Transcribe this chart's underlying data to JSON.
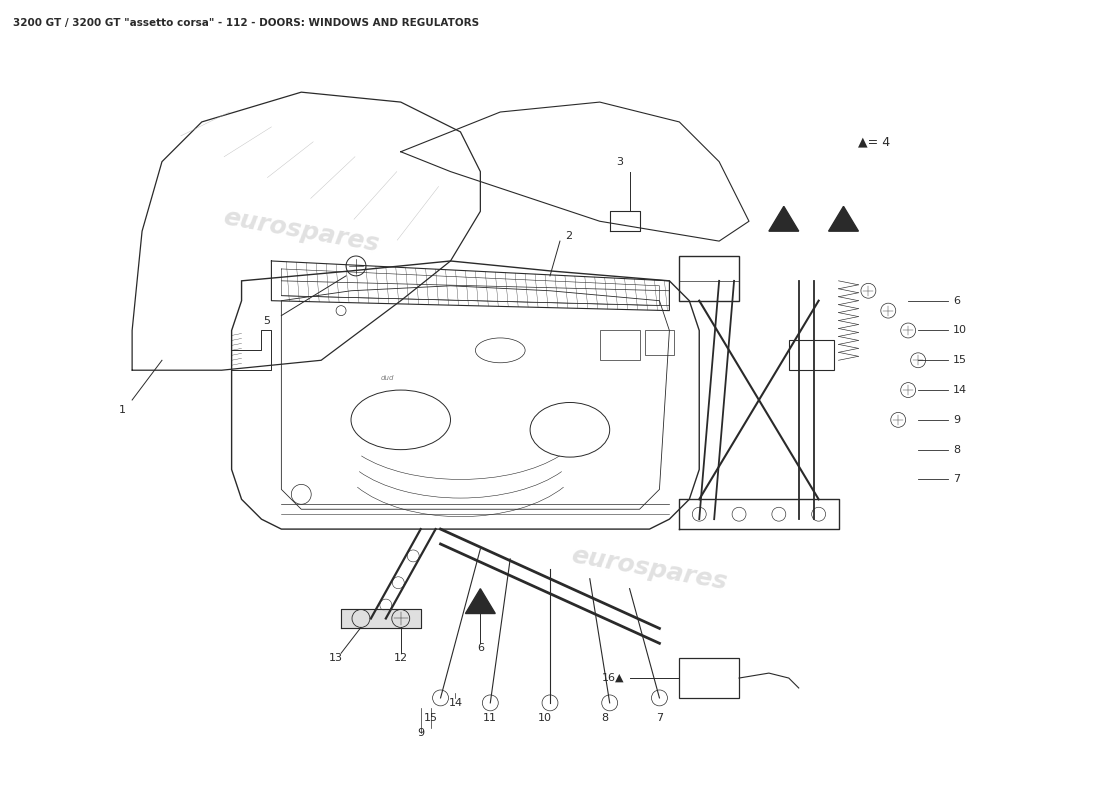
{
  "title": "3200 GT / 3200 GT \"assetto corsa\" - 112 - DOORS: WINDOWS AND REGULATORS",
  "title_fontsize": 7.5,
  "bg": "#ffffff",
  "lc": "#2a2a2a",
  "wm_color": "#c8c8c8",
  "wm_text": "eurospares",
  "figw": 11.0,
  "figh": 8.0,
  "dpi": 100,
  "xlim": [
    0,
    110
  ],
  "ylim": [
    0,
    80
  ]
}
